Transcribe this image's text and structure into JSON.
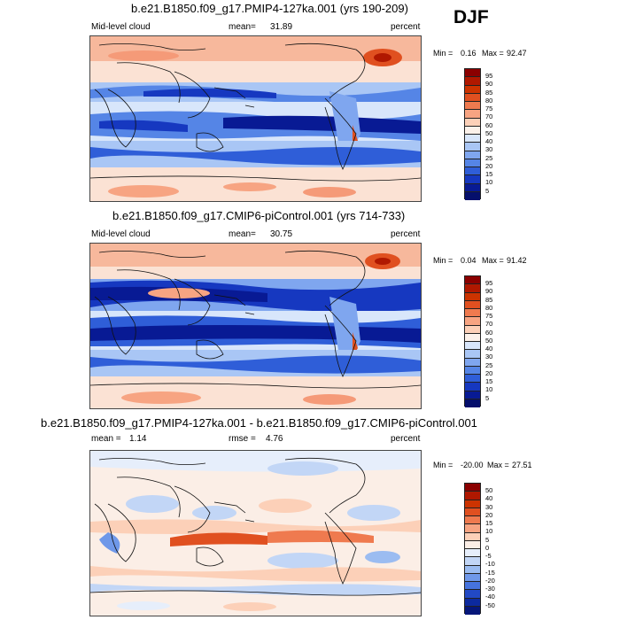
{
  "season": "DJF",
  "panels": [
    {
      "title": "b.e21.B1850.f09_g17.PMIP4-127ka.001 (yrs 190-209)",
      "left_label": "Mid-level cloud",
      "mean_label": "mean=",
      "mean_value": "31.89",
      "units": "percent",
      "min_label": "Min =",
      "min_value": "0.16",
      "max_label": "Max =",
      "max_value": "92.47",
      "levels": [
        "95",
        "90",
        "85",
        "80",
        "75",
        "70",
        "60",
        "50",
        "40",
        "30",
        "25",
        "20",
        "15",
        "10",
        "5"
      ],
      "colors": [
        "#8b0000",
        "#b01800",
        "#cc3300",
        "#e05020",
        "#ef7a4f",
        "#f7a482",
        "#fcd0b8",
        "#fbf1ea",
        "#d8e6fb",
        "#a9c6f5",
        "#7fa6ef",
        "#5585e6",
        "#2f5ed8",
        "#1638c0",
        "#081a94",
        "#050f6c"
      ]
    },
    {
      "title": "b.e21.B1850.f09_g17.CMIP6-piControl.001 (yrs 714-733)",
      "left_label": "Mid-level cloud",
      "mean_label": "mean=",
      "mean_value": "30.75",
      "units": "percent",
      "min_label": "Min =",
      "min_value": "0.04",
      "max_label": "Max =",
      "max_value": "91.42",
      "levels": [
        "95",
        "90",
        "85",
        "80",
        "75",
        "70",
        "60",
        "50",
        "40",
        "30",
        "25",
        "20",
        "15",
        "10",
        "5"
      ],
      "colors": [
        "#8b0000",
        "#b01800",
        "#cc3300",
        "#e05020",
        "#ef7a4f",
        "#f7a482",
        "#fcd0b8",
        "#fbf1ea",
        "#d8e6fb",
        "#a9c6f5",
        "#7fa6ef",
        "#5585e6",
        "#2f5ed8",
        "#1638c0",
        "#081a94",
        "#050f6c"
      ]
    },
    {
      "title": "b.e21.B1850.f09_g17.PMIP4-127ka.001 - b.e21.B1850.f09_g17.CMIP6-piControl.001",
      "mean_label": "mean =",
      "mean_value": "1.14",
      "rmse_label": "rmse =",
      "rmse_value": "4.76",
      "units": "percent",
      "min_label": "Min =",
      "min_value": "-20.00",
      "max_label": "Max =",
      "max_value": "27.51",
      "levels": [
        "50",
        "40",
        "30",
        "20",
        "15",
        "10",
        "5",
        "0",
        "-5",
        "-10",
        "-15",
        "-20",
        "-30",
        "-40",
        "-50"
      ],
      "colors": [
        "#8b0000",
        "#b01800",
        "#cc3300",
        "#e05020",
        "#ef7a4f",
        "#f7a482",
        "#fcd0b8",
        "#fbeee6",
        "#e6eefb",
        "#c2d6f6",
        "#9bbcf1",
        "#6f98e9",
        "#4673de",
        "#2249c5",
        "#0c2a9f",
        "#06177a"
      ]
    }
  ]
}
